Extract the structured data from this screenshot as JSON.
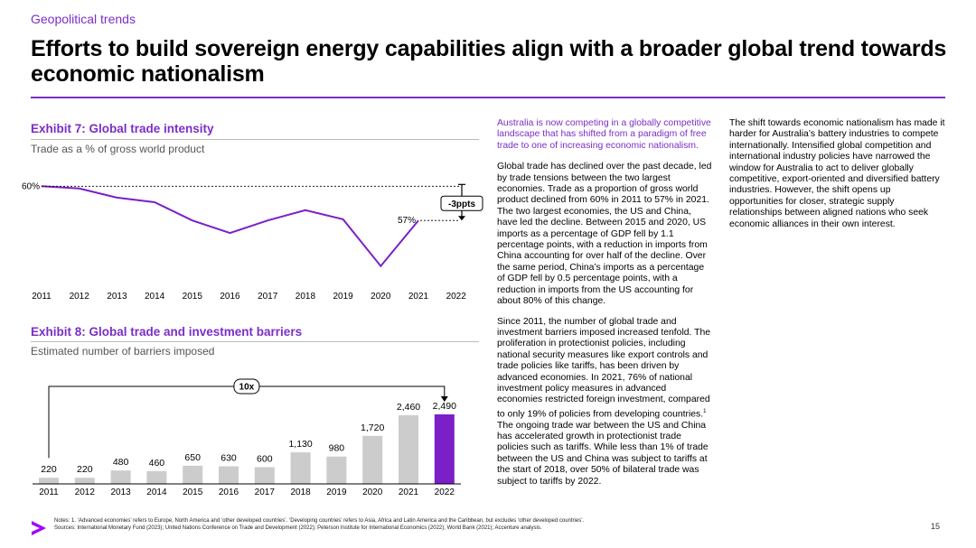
{
  "header": {
    "kicker": "Geopolitical trends",
    "title": "Efforts to build sovereign energy capabilities align with a broader global trend towards economic nationalism"
  },
  "exhibit7": {
    "title": "Exhibit 7: Global trade intensity",
    "subtitle": "Trade as a % of gross world product",
    "start_label": "60%",
    "end_label": "57%",
    "change_label": "-3ppts"
  },
  "exhibit8": {
    "title": "Exhibit 8: Global trade and investment barriers",
    "subtitle": "Estimated number of barriers imposed",
    "multiplier_label": "10x"
  },
  "chart_data": [
    {
      "type": "line",
      "title": "Exhibit 7: Global trade intensity",
      "subtitle": "Trade as a % of gross world product",
      "x": [
        "2011",
        "2012",
        "2013",
        "2014",
        "2015",
        "2016",
        "2017",
        "2018",
        "2019",
        "2020",
        "2021",
        "2022"
      ],
      "series": [
        {
          "values": [
            60.0,
            59.8,
            59.0,
            58.6,
            57.0,
            55.9,
            57.0,
            57.9,
            57.1,
            53.0,
            57.0,
            null
          ]
        }
      ],
      "ylim": [
        52.5,
        60.5
      ],
      "grid": false,
      "annotations": [
        "60%",
        "57%",
        "-3ppts"
      ]
    },
    {
      "type": "bar",
      "title": "Exhibit 8: Global trade and investment barriers",
      "subtitle": "Estimated number of barriers imposed",
      "categories": [
        "2011",
        "2012",
        "2013",
        "2014",
        "2015",
        "2016",
        "2017",
        "2018",
        "2019",
        "2020",
        "2021",
        "2022"
      ],
      "values": [
        220,
        220,
        480,
        460,
        650,
        630,
        600,
        1130,
        980,
        1720,
        2460,
        2490
      ],
      "value_labels": [
        "220",
        "220",
        "480",
        "460",
        "650",
        "630",
        "600",
        "1,130",
        "980",
        "1,720",
        "2,460",
        "2,490"
      ],
      "ylim": [
        0,
        2600
      ],
      "highlight_color": "#7b1fc8",
      "bar_color": "#cccccc",
      "annotations": [
        "10x"
      ]
    }
  ],
  "column2": {
    "lead": "Australia is now competing in a globally competitive landscape that has shifted from a paradigm of free trade to one of increasing economic nationalism.",
    "p1": "Global trade has declined over the past decade, led by trade tensions between the two largest economies. Trade as a proportion of gross world product declined from 60% in 2011 to 57% in 2021. The two largest economies, the US and China, have led the decline. Between 2015 and 2020, US imports as a percentage of GDP fell by 1.1 percentage points, with a reduction in imports from China accounting for over half of the decline. Over the same period, China’s imports as a percentage of GDP fell by 0.5 percentage points, with a reduction in imports from the US accounting for about 80% of this change.",
    "p2a": "Since 2011, the number of global trade and investment barriers imposed increased tenfold. The proliferation in protectionist policies, including national security measures like export controls and trade policies like tariffs, has been driven by advanced economies. In 2021, 76% of national investment policy measures in advanced economies restricted foreign investment, compared to only 19% of policies from developing countries.",
    "footnote_mark": "1",
    "p2b": " The ongoing trade war between the US and China has accelerated growth in protectionist trade policies such as tariffs. While less than 1% of trade between the US and China was subject to tariffs at the start of 2018, over 50% of bilateral trade was subject to tariffs by 2022."
  },
  "column3": {
    "p1": "The shift towards economic nationalism has made it harder for Australia’s battery industries to compete internationally. Intensified global competition and international industry policies have narrowed the window for Australia to act to deliver globally competitive, export-oriented and diversified battery industries. However, the shift opens up opportunities for closer, strategic supply relationships between aligned nations who seek economic alliances in their own interest."
  },
  "footer": {
    "notes": "Notes: 1. ‘Advanced economies’ refers to Europe, North America and ‘other developed countries’. ‘Developing countries’ refers to Asia, Africa and Latin America and the Caribbean, but excludes ‘other developed countries’.",
    "sources": "Sources: International Monetary Fund (2023); United Nations Conference on Trade and Development (2022); Peterson Institute for International Economics (2022); World Bank (2021); Accenture analysis.",
    "page_number": "15",
    "logo_icon": "accenture-chevron-icon",
    "accent_color": "#7b2ec8"
  }
}
